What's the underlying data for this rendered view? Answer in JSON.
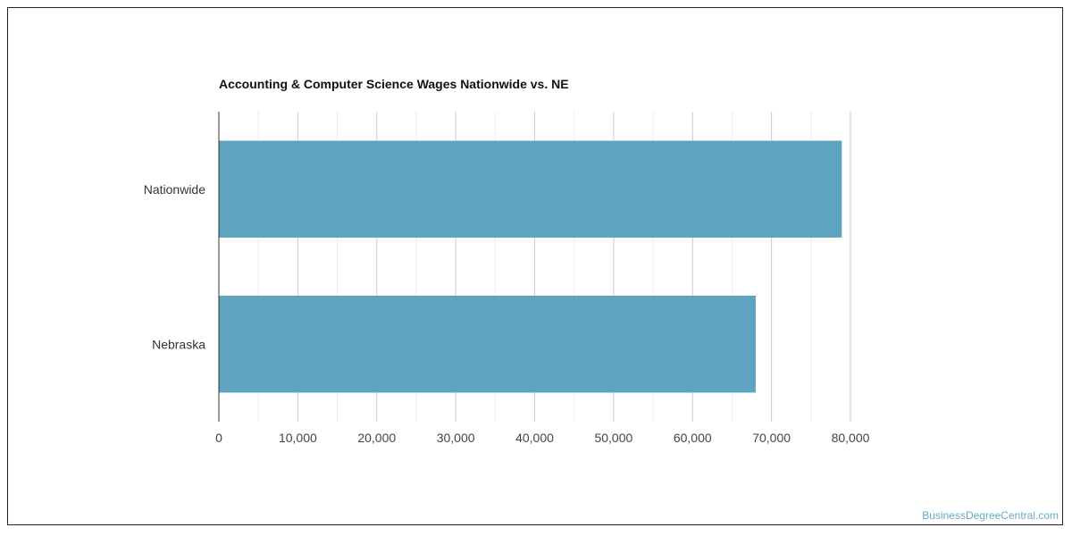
{
  "chart_data": {
    "type": "bar",
    "orientation": "horizontal",
    "title": "Accounting & Computer Science Wages Nationwide vs. NE",
    "categories": [
      "Nationwide",
      "Nebraska"
    ],
    "values": [
      78900,
      68000
    ],
    "xlim": [
      0,
      80000
    ],
    "xticks": [
      "0",
      "10,000",
      "20,000",
      "30,000",
      "40,000",
      "50,000",
      "60,000",
      "70,000",
      "80,000"
    ],
    "xlabel": "",
    "ylabel": "",
    "grid": true,
    "legend": "none",
    "bar_color": "#5ea3bf"
  },
  "watermark": "BusinessDegreeCentral.com"
}
